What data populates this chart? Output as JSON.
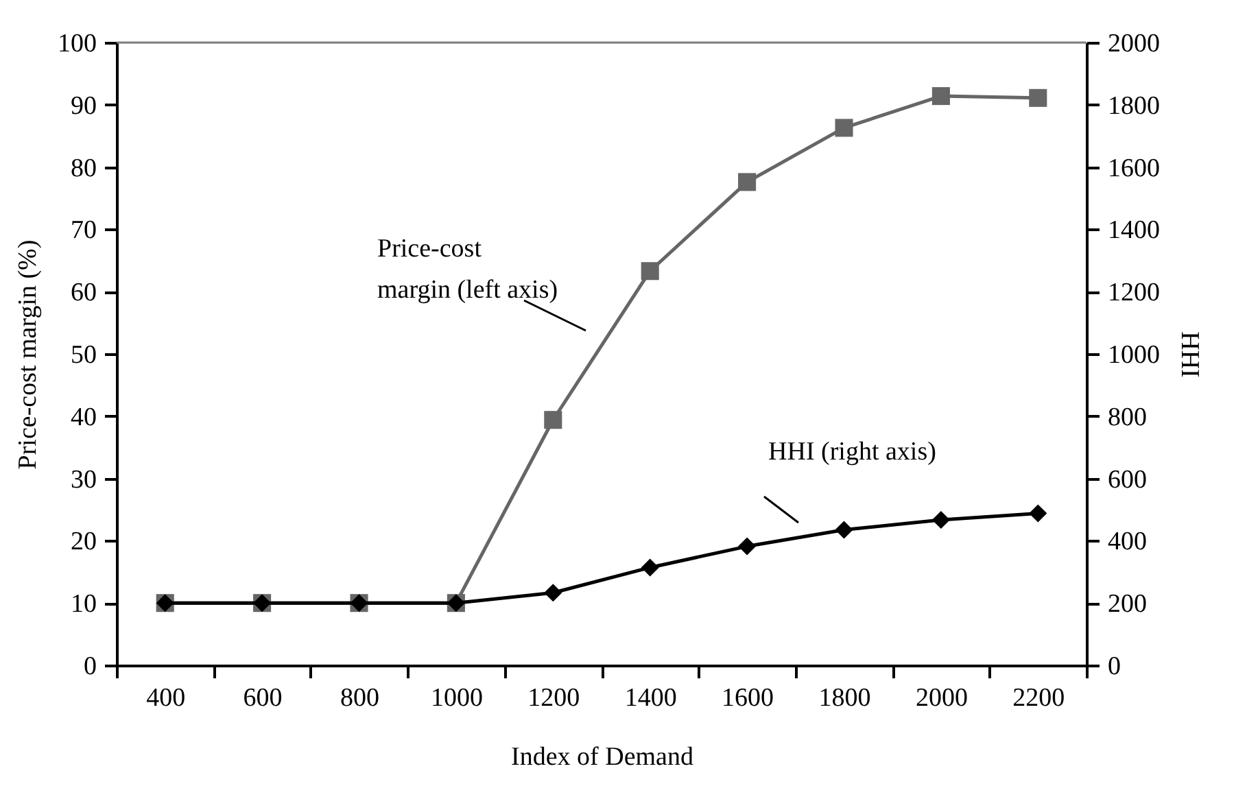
{
  "chart_data": {
    "type": "line",
    "xlabel": "Index of Demand",
    "ylabel": "Price-cost margin (%)",
    "y2label": "HHI",
    "categories": [
      "400",
      "600",
      "800",
      "1000",
      "1200",
      "1400",
      "1600",
      "1800",
      "2000",
      "2200"
    ],
    "series": [
      {
        "name": "Price-cost margin (left axis)",
        "color": "#666666",
        "marker": "square",
        "values": [
          10,
          10,
          10,
          10,
          39.4,
          63.3,
          77.6,
          86.3,
          91.4,
          91.1
        ]
      },
      {
        "name": "HHI (right axis)",
        "color": "#000000",
        "marker": "diamond",
        "axis": "y2",
        "values": [
          200,
          200,
          200,
          200,
          233,
          314,
          382,
          435,
          467,
          488
        ]
      }
    ],
    "ylim": [
      0,
      100
    ],
    "yticks": [
      0,
      10,
      20,
      30,
      40,
      50,
      60,
      70,
      80,
      90,
      100
    ],
    "y2lim": [
      0,
      2000
    ],
    "y2ticks": [
      0,
      200,
      400,
      600,
      800,
      1000,
      1200,
      1400,
      1600,
      1800,
      2000
    ],
    "grid": false,
    "line_style": "solid"
  }
}
